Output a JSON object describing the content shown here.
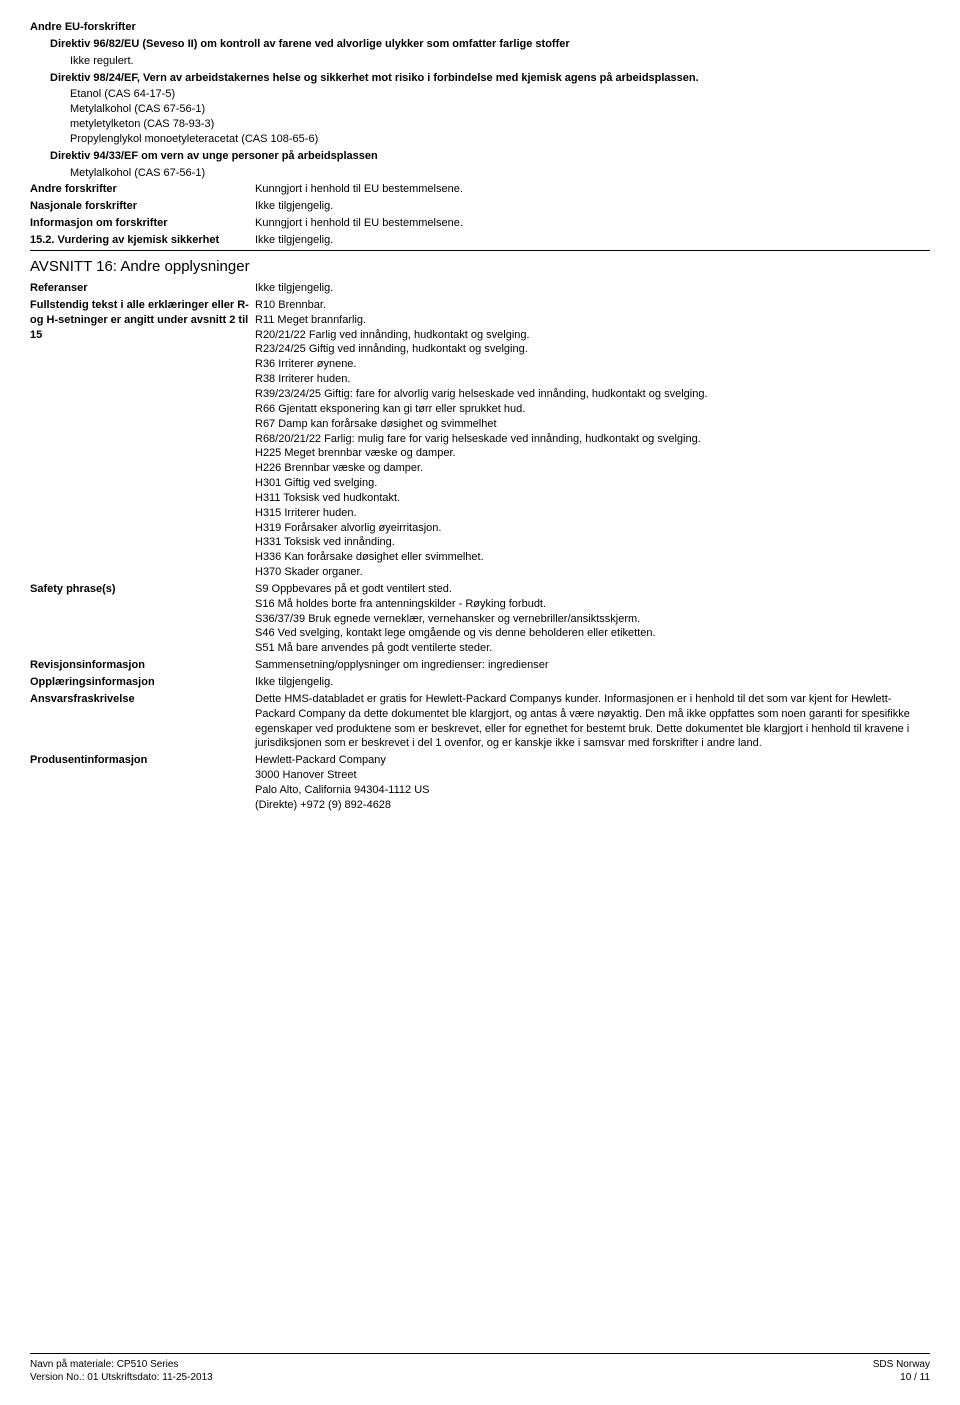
{
  "section15": {
    "heading1": "Andre EU-forskrifter",
    "directive1": "Direktiv 96/82/EU (Seveso II) om kontroll av farene ved alvorlige ulykker som omfatter farlige stoffer",
    "directive1_value": "Ikke regulert.",
    "directive2": "Direktiv 98/24/EF, Vern av arbeidstakernes helse og sikkerhet mot risiko i forbindelse med kjemisk agens på arbeidsplassen.",
    "chems1": [
      "Etanol (CAS 64-17-5)",
      "Metylalkohol (CAS 67-56-1)",
      "metyletylketon (CAS 78-93-3)",
      "Propylenglykol monoetyleteracetat (CAS 108-65-6)"
    ],
    "directive3": "Direktiv 94/33/EF om vern av unge personer på arbeidsplassen",
    "chems2": [
      "Metylalkohol (CAS 67-56-1)"
    ],
    "rows": [
      {
        "label": "Andre forskrifter",
        "value": "Kunngjort i henhold til EU bestemmelsene."
      },
      {
        "label": "Nasjonale forskrifter",
        "value": "Ikke tilgjengelig."
      },
      {
        "label": "Informasjon om forskrifter",
        "value": "Kunngjort i henhold til EU bestemmelsene."
      },
      {
        "label": "15.2. Vurdering av kjemisk sikkerhet",
        "value": "Ikke tilgjengelig."
      }
    ]
  },
  "section16": {
    "title": "AVSNITT 16: Andre opplysninger",
    "rows": [
      {
        "label": "Referanser",
        "value": "Ikke tilgjengelig."
      }
    ],
    "fulltext_label": "Fullstendig tekst i alle erklæringer eller R- og H-setninger er angitt under avsnitt 2 til 15",
    "fulltext_lines": [
      "R10 Brennbar.",
      "R11 Meget brannfarlig.",
      "R20/21/22 Farlig ved innånding, hudkontakt og svelging.",
      "R23/24/25 Giftig ved innånding, hudkontakt og svelging.",
      "R36 Irriterer øynene.",
      "R38 Irriterer huden.",
      "R39/23/24/25 Giftig: fare for alvorlig varig helseskade ved innånding, hudkontakt og svelging.",
      "R66 Gjentatt eksponering kan gi tørr eller sprukket hud.",
      "R67 Damp kan forårsake døsighet og svimmelhet",
      "R68/20/21/22 Farlig: mulig fare for varig helseskade ved innånding, hudkontakt og svelging.",
      "H225 Meget brennbar væske og damper.",
      "H226 Brennbar væske og damper.",
      "H301 Giftig ved svelging.",
      "H311 Toksisk ved hudkontakt.",
      "H315 Irriterer huden.",
      "H319 Forårsaker alvorlig øyeirritasjon.",
      "H331 Toksisk ved innånding.",
      "H336 Kan forårsake døsighet eller svimmelhet.",
      "H370 Skader organer."
    ],
    "safety_label": "Safety phrase(s)",
    "safety_lines": [
      "S9 Oppbevares på et godt ventilert sted.",
      "S16 Må holdes borte fra antenningskilder - Røyking forbudt.",
      "S36/37/39 Bruk egnede verneklær, vernehansker og vernebriller/ansiktsskjerm.",
      "S46 Ved svelging, kontakt lege omgående og vis denne beholderen eller etiketten.",
      "S51 Må bare anvendes på godt ventilerte steder."
    ],
    "more_rows": [
      {
        "label": "Revisjonsinformasjon",
        "value": "Sammensetning/opplysninger om ingredienser: ingredienser"
      },
      {
        "label": "Opplæringsinformasjon",
        "value": "Ikke tilgjengelig."
      }
    ],
    "disclaimer_label": "Ansvarsfraskrivelse",
    "disclaimer_value": "Dette HMS-databladet er gratis for Hewlett-Packard Companys kunder. Informasjonen er i henhold til det som var kjent for Hewlett-Packard Company da dette dokumentet ble klargjort, og antas å være nøyaktig. Den må ikke oppfattes som noen garanti for spesifikke egenskaper ved produktene som er beskrevet, eller for egnethet for bestemt bruk. Dette dokumentet ble klargjort i henhold til kravene i jurisdiksjonen som er beskrevet i del 1 ovenfor, og er kanskje ikke i samsvar med forskrifter i andre land.",
    "producer_label": "Produsentinformasjon",
    "producer_lines": [
      "Hewlett-Packard Company",
      "3000 Hanover Street",
      "Palo Alto, California  94304-1112 US",
      "(Direkte) +972 (9) 892-4628"
    ]
  },
  "footer": {
    "left1": "Navn på materiale: CP510 Series",
    "left2": "Version No.: 01    Utskriftsdato: 11-25-2013",
    "right1": "SDS Norway",
    "right2": "10 / 11"
  }
}
